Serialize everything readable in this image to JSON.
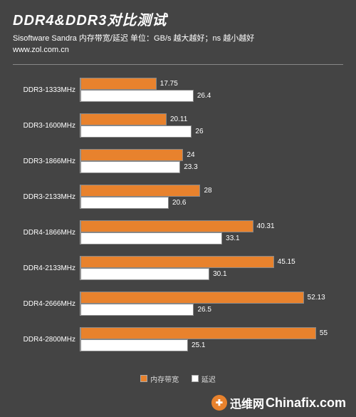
{
  "header": {
    "title": "DDR4&DDR3对比测试",
    "subtitle": "Sisoftware Sandra 内存带宽/延迟    单位：GB/s 越大越好；ns 越小越好",
    "url": "www.zol.com.cn"
  },
  "chart": {
    "type": "bar",
    "orientation": "horizontal",
    "background_color": "#444444",
    "series_colors": {
      "bandwidth": "#e8822d",
      "latency": "#ffffff"
    },
    "bar_border_color": "#888888",
    "label_color": "#ffffff",
    "label_fontsize": 10,
    "xmax": 60,
    "categories": [
      {
        "label": "DDR3-1333MHz",
        "bandwidth": 17.75,
        "latency": 26.4
      },
      {
        "label": "DDR3-1600MHz",
        "bandwidth": 20.11,
        "latency": 26
      },
      {
        "label": "DDR3-1866MHz",
        "bandwidth": 24,
        "latency": 23.3
      },
      {
        "label": "DDR3-2133MHz",
        "bandwidth": 28,
        "latency": 20.6
      },
      {
        "label": "DDR4-1866MHz",
        "bandwidth": 40.31,
        "latency": 33.1
      },
      {
        "label": "DDR4-2133MHz",
        "bandwidth": 45.15,
        "latency": 30.1
      },
      {
        "label": "DDR4-2666MHz",
        "bandwidth": 52.13,
        "latency": 26.5
      },
      {
        "label": "DDR4-2800MHz",
        "bandwidth": 55,
        "latency": 25.1
      }
    ],
    "legend": {
      "bandwidth": "内存带宽",
      "latency": "延迟"
    }
  },
  "watermark": {
    "cn": "迅维网",
    "en": "Chinafix.com"
  }
}
